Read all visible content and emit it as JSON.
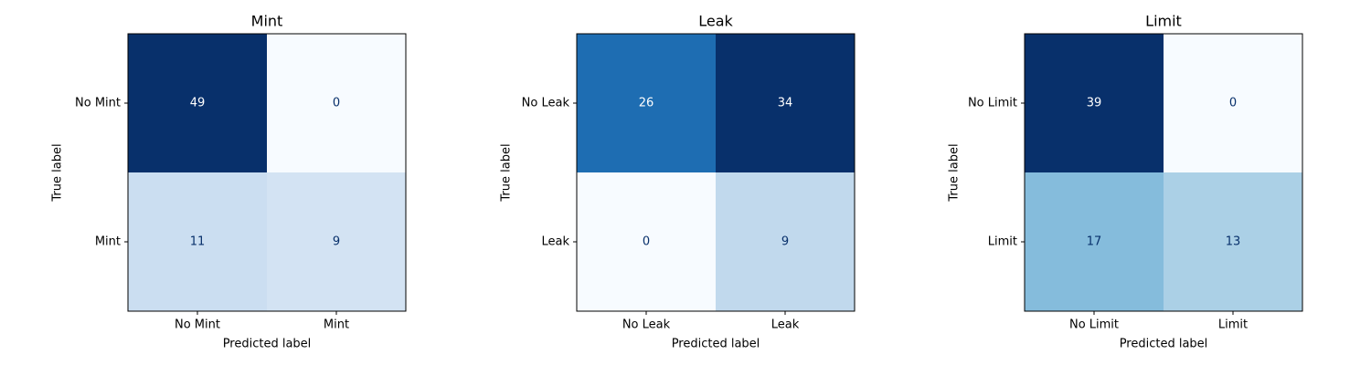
{
  "chart_data": [
    {
      "type": "heatmap",
      "title": "Mint",
      "xlabel": "Predicted label",
      "ylabel": "True label",
      "x_categories": [
        "No Mint",
        "Mint"
      ],
      "y_categories": [
        "No Mint",
        "Mint"
      ],
      "values": [
        [
          49,
          0
        ],
        [
          11,
          9
        ]
      ],
      "colormap": "Blues",
      "colorbar": false
    },
    {
      "type": "heatmap",
      "title": "Leak",
      "xlabel": "Predicted label",
      "ylabel": "True label",
      "x_categories": [
        "No Leak",
        "Leak"
      ],
      "y_categories": [
        "No Leak",
        "Leak"
      ],
      "values": [
        [
          26,
          34
        ],
        [
          0,
          9
        ]
      ],
      "colormap": "Blues",
      "colorbar": false
    },
    {
      "type": "heatmap",
      "title": "Limit",
      "xlabel": "Predicted label",
      "ylabel": "True label",
      "x_categories": [
        "No Limit",
        "Limit"
      ],
      "y_categories": [
        "No Limit",
        "Limit"
      ],
      "values": [
        [
          39,
          0
        ],
        [
          17,
          13
        ]
      ],
      "colormap": "Blues",
      "colorbar": false
    }
  ]
}
